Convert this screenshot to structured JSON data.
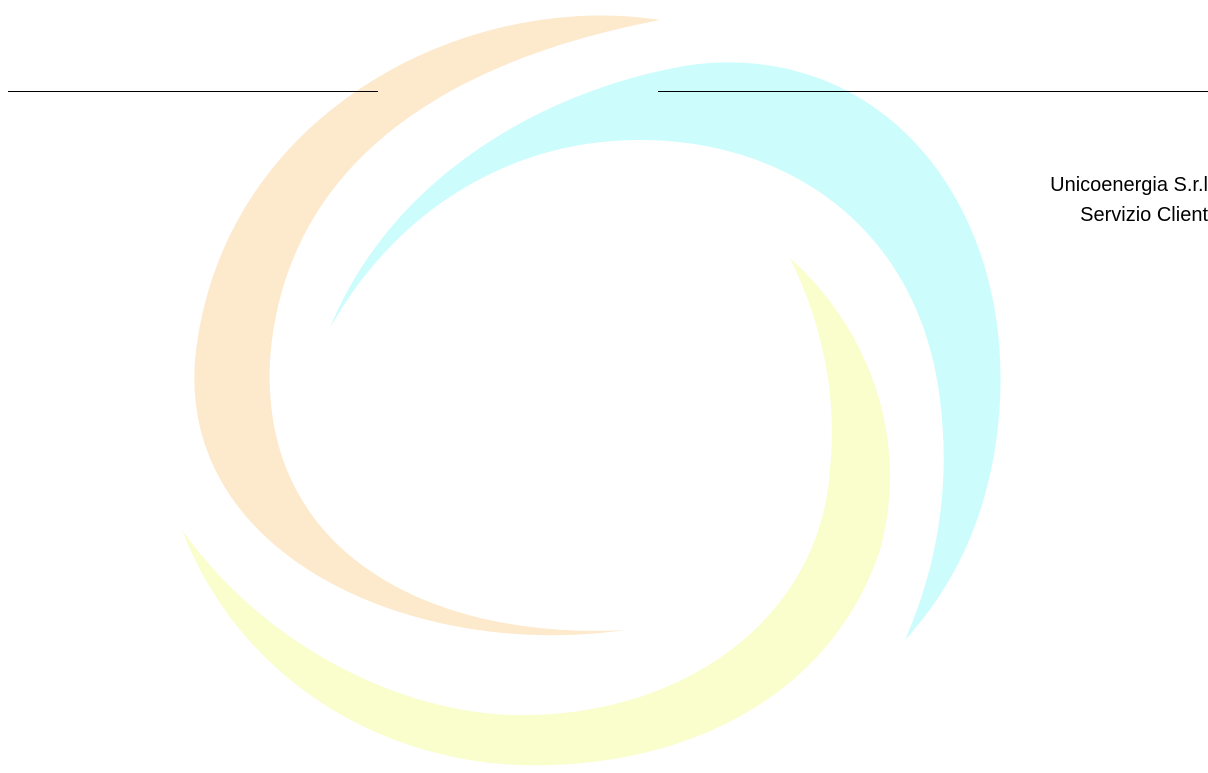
{
  "watermark": {
    "icon": "swirl-logo-icon",
    "colors": {
      "orange": "#fde9cc",
      "cyan": "#ccfcfc",
      "yellow": "#fafdcc"
    }
  },
  "recipient": {
    "company": "Unicoenergia S.r.l",
    "department": "Servizio Client"
  }
}
